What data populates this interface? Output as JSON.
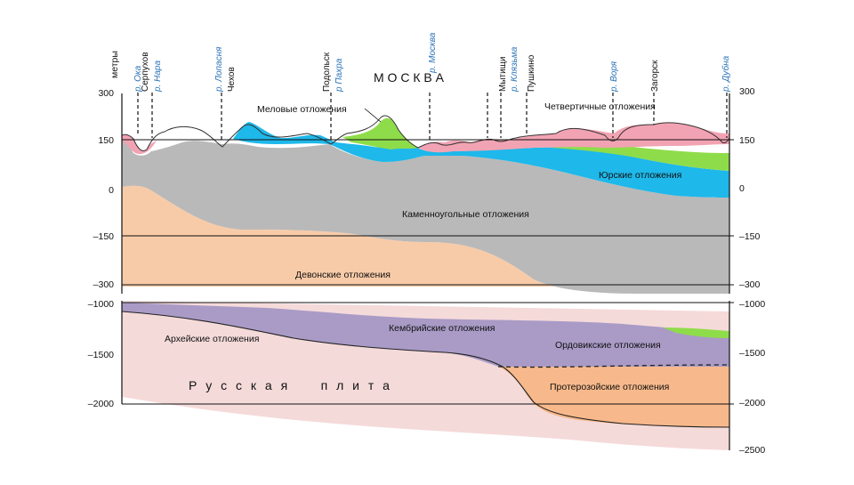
{
  "units_label": "метры",
  "upper_axis_ticks": [
    "300",
    "150",
    "0",
    "–150",
    "–300"
  ],
  "lower_axis_ticks": [
    "–1000",
    "–1500",
    "–2000"
  ],
  "lower_axis_right_extra_tick": "–2500",
  "place_labels": {
    "oka": "р. Ока",
    "serpukhov": "Серпухов",
    "nara": "р. Нара",
    "lopasnya": "р. Лопасня",
    "chekhov": "Чехов",
    "podolsk": "Подольск",
    "pakhra": "р Пахра",
    "moskva_river": "р. Москва",
    "mytishchi": "Мытищи",
    "klyazma": "р. Клязьма",
    "pushkino": "Пушкино",
    "vorya": "р. Воря",
    "zagorsk": "Загорск",
    "dubna": "р. Дубна"
  },
  "city_title": "М О С К В А",
  "plate_title": "Р у с с к а я     п л и т а",
  "layer_labels": {
    "cretaceous": "Меловые отложения",
    "quaternary": "Четвертичные отложения",
    "jurassic": "Юрские отложения",
    "carboniferous": "Каменноугольные отложения",
    "devonian": "Девонские отложения",
    "cambrian": "Кембрийские отложения",
    "archean": "Архейские отложения",
    "ordovician": "Ордовикские отложения",
    "proterozoic": "Протерозойские отложения"
  },
  "colors": {
    "quaternary": "#f2a3b3",
    "cretaceous": "#8fdc4a",
    "jurassic": "#1eb8ea",
    "carboniferous": "#b9b9b9",
    "devonian": "#f8cba8",
    "cambrian": "#a99bc6",
    "ordovician": "#a99bc6",
    "proterozoic": "#f7b98b",
    "archean": "#f5dada",
    "river_text": "#2a73b8"
  }
}
